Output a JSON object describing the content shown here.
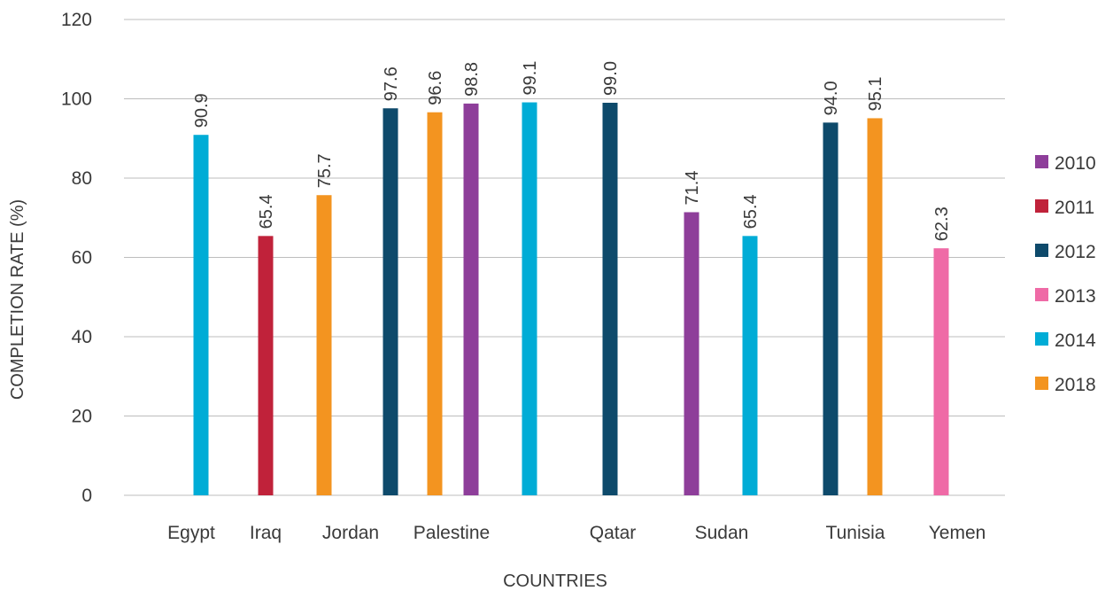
{
  "chart_data": {
    "type": "bar",
    "title": "",
    "xlabel": "COUNTRIES",
    "ylabel": "COMPLETION RATE (%)",
    "ylim": [
      0,
      120
    ],
    "yticks": [
      0,
      20,
      40,
      60,
      80,
      100,
      120
    ],
    "grid": true,
    "legend_position": "right",
    "data_labels_rotated": true,
    "categories": [
      "Egypt",
      "Iraq",
      "Jordan",
      "Palestine",
      "",
      "Qatar",
      "Sudan",
      "Tunisia",
      "Yemen"
    ],
    "series": [
      {
        "name": "2010",
        "color": "#8e3e9a",
        "values": [
          null,
          null,
          null,
          98.8,
          null,
          null,
          71.4,
          null,
          null
        ]
      },
      {
        "name": "2011",
        "color": "#c0223a",
        "values": [
          null,
          65.4,
          null,
          null,
          null,
          null,
          null,
          null,
          null
        ]
      },
      {
        "name": "2012",
        "color": "#0e4a6b",
        "values": [
          null,
          null,
          null,
          97.6,
          null,
          99.0,
          null,
          94.0,
          null
        ]
      },
      {
        "name": "2013",
        "color": "#ef6aa6",
        "values": [
          null,
          null,
          null,
          null,
          null,
          null,
          null,
          null,
          62.3
        ]
      },
      {
        "name": "2014",
        "color": "#00acd6",
        "values": [
          90.9,
          null,
          null,
          null,
          99.1,
          null,
          65.4,
          null,
          null
        ]
      },
      {
        "name": "2018",
        "color": "#f39420",
        "values": [
          null,
          null,
          75.7,
          96.6,
          null,
          null,
          null,
          95.1,
          null
        ]
      }
    ],
    "bars": [
      {
        "category": "Egypt",
        "series": "2014",
        "value": 90.9,
        "label": "90.9"
      },
      {
        "category": "Iraq",
        "series": "2011",
        "value": 65.4,
        "label": "65.4"
      },
      {
        "category": "Jordan",
        "series": "2018",
        "value": 75.7,
        "label": "75.7"
      },
      {
        "category": "Palestine",
        "series": "2012",
        "value": 97.6,
        "label": "97.6"
      },
      {
        "category": "Palestine",
        "series": "2018",
        "value": 96.6,
        "label": "96.6"
      },
      {
        "category": "Palestine",
        "series": "2010",
        "value": 98.8,
        "label": "98.8"
      },
      {
        "category": "",
        "series": "2014",
        "value": 99.1,
        "label": "99.1"
      },
      {
        "category": "Qatar",
        "series": "2012",
        "value": 99.0,
        "label": "99.0"
      },
      {
        "category": "Sudan",
        "series": "2010",
        "value": 71.4,
        "label": "71.4"
      },
      {
        "category": "Sudan",
        "series": "2014",
        "value": 65.4,
        "label": "65.4"
      },
      {
        "category": "Tunisia",
        "series": "2012",
        "value": 94.0,
        "label": "94.0"
      },
      {
        "category": "Tunisia",
        "series": "2018",
        "value": 95.1,
        "label": "95.1"
      },
      {
        "category": "Yemen",
        "series": "2013",
        "value": 62.3,
        "label": "62.3"
      }
    ]
  }
}
